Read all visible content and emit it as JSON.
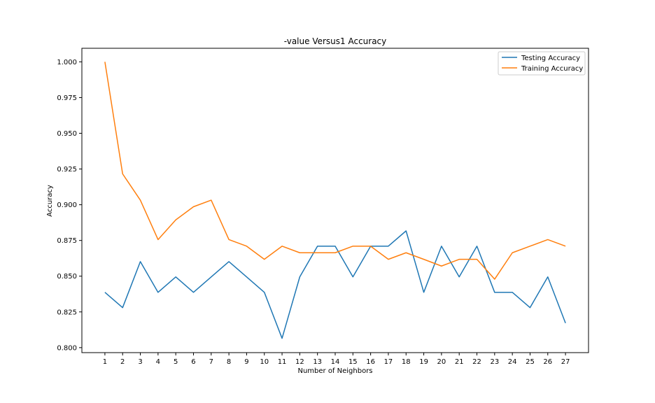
{
  "chart_data": {
    "type": "line",
    "title": "-value Versus1 Accuracy",
    "xlabel": "Number of Neighbors",
    "ylabel": "Accuracy",
    "x": [
      1,
      2,
      3,
      4,
      5,
      6,
      7,
      8,
      9,
      10,
      11,
      12,
      13,
      14,
      15,
      16,
      17,
      18,
      19,
      20,
      21,
      22,
      23,
      24,
      25,
      26,
      27
    ],
    "xticks": [
      "1",
      "2",
      "3",
      "4",
      "5",
      "6",
      "7",
      "8",
      "9",
      "10",
      "11",
      "12",
      "13",
      "14",
      "15",
      "16",
      "17",
      "18",
      "19",
      "20",
      "21",
      "22",
      "23",
      "24",
      "25",
      "26",
      "27"
    ],
    "xlim": [
      -0.3,
      28.3
    ],
    "ylim": [
      0.7965,
      1.0095
    ],
    "yticks": [
      "0.800",
      "0.825",
      "0.850",
      "0.875",
      "0.900",
      "0.925",
      "0.950",
      "0.975",
      "1.000"
    ],
    "legend_position": "top-right",
    "grid": false,
    "series": [
      {
        "name": "Testing Accuracy",
        "color": "#1f77b4",
        "values": [
          0.8387,
          0.828,
          0.8602,
          0.8387,
          0.8495,
          0.8387,
          0.8495,
          0.8602,
          0.8495,
          0.8387,
          0.8065,
          0.8495,
          0.871,
          0.871,
          0.8495,
          0.871,
          0.871,
          0.8817,
          0.8387,
          0.871,
          0.8495,
          0.871,
          0.8387,
          0.8387,
          0.828,
          0.8495,
          0.8172
        ]
      },
      {
        "name": "Training Accuracy",
        "color": "#ff7f0e",
        "values": [
          1.0,
          0.9216,
          0.9032,
          0.8756,
          0.8894,
          0.8986,
          0.9032,
          0.8756,
          0.871,
          0.8618,
          0.871,
          0.8664,
          0.8664,
          0.8664,
          0.871,
          0.871,
          0.8618,
          0.8664,
          0.8618,
          0.8571,
          0.8618,
          0.8618,
          0.8479,
          0.8664,
          0.871,
          0.8756,
          0.871
        ]
      }
    ]
  }
}
